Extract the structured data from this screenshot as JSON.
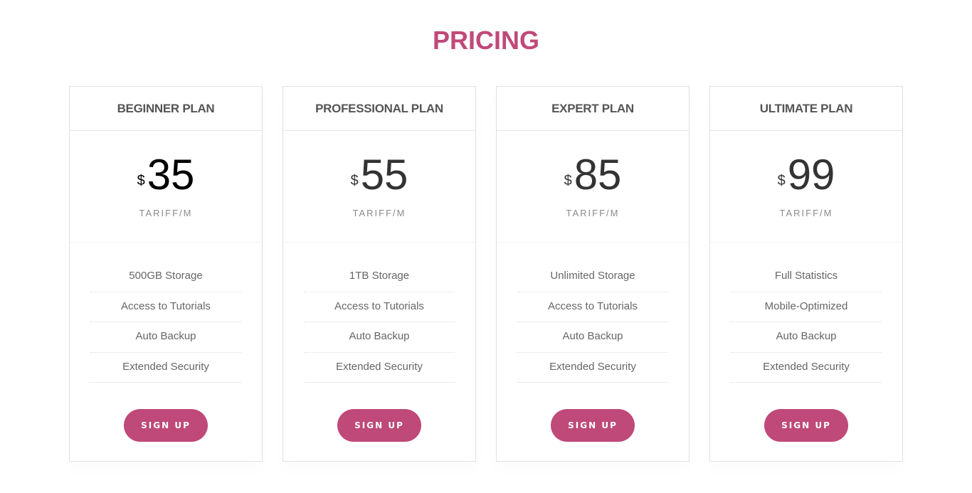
{
  "section_title": "PRICING",
  "accent_color": "#bf4978",
  "plans": [
    {
      "name": "BEGINNER PLAN",
      "currency": "$",
      "price": "35",
      "period": "TARIFF/M",
      "features": [
        "500GB Storage",
        "Access to Tutorials",
        "Auto Backup",
        "Extended Security"
      ],
      "button": "SIGN UP"
    },
    {
      "name": "PROFESSIONAL PLAN",
      "currency": "$",
      "price": "55",
      "period": "TARIFF/M",
      "features": [
        "1TB Storage",
        "Access to Tutorials",
        "Auto Backup",
        "Extended Security"
      ],
      "button": "SIGN UP"
    },
    {
      "name": "EXPERT PLAN",
      "currency": "$",
      "price": "85",
      "period": "TARIFF/M",
      "features": [
        "Unlimited Storage",
        "Access to Tutorials",
        "Auto Backup",
        "Extended Security"
      ],
      "button": "SIGN UP"
    },
    {
      "name": "ULTIMATE PLAN",
      "currency": "$",
      "price": "99",
      "period": "TARIFF/M",
      "features": [
        "Full Statistics",
        "Mobile-Optimized",
        "Auto Backup",
        "Extended Security"
      ],
      "button": "SIGN UP"
    }
  ]
}
